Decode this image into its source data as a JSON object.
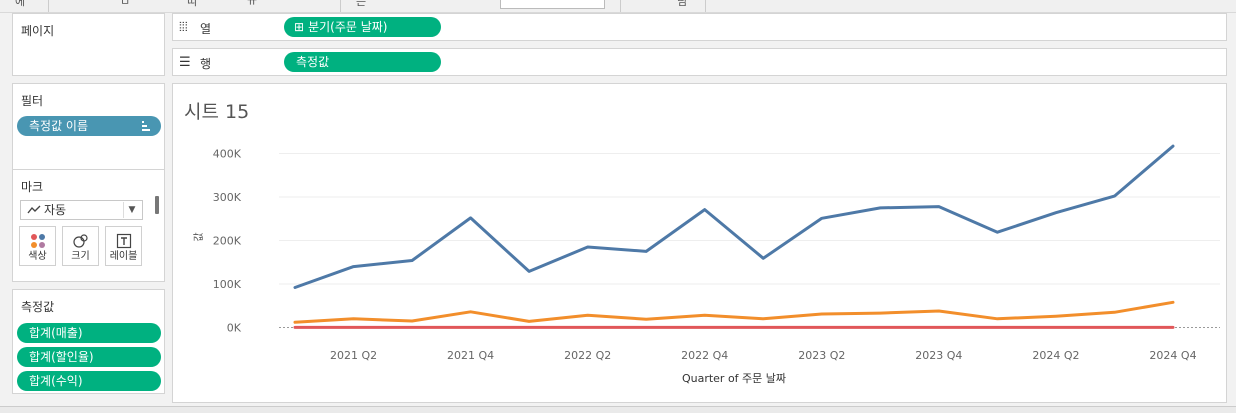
{
  "toolbar": {
    "fragments": [
      "에",
      "ㅁ",
      "띠",
      "ㅠ",
      "는",
      "님"
    ]
  },
  "pages_card": {
    "title": "페이지"
  },
  "filters_card": {
    "title": "필터",
    "pill": "측정값 이름",
    "pill_icon": "sort-icon"
  },
  "marks_card": {
    "title": "마크",
    "mark_type": "자동",
    "mark_type_icon": "line-chart-icon",
    "buttons": [
      {
        "label": "색상",
        "icon": "color-dots-icon"
      },
      {
        "label": "크기",
        "icon": "size-circles-icon"
      },
      {
        "label": "레이블",
        "icon": "text-label-icon"
      }
    ]
  },
  "measures_card": {
    "title": "측정값",
    "pills": [
      "합계(매출)",
      "합계(할인율)",
      "합계(수익)"
    ]
  },
  "columns_shelf": {
    "label": "열",
    "icon": "columns-icon",
    "pill": "분기(주문 날짜)",
    "pill_prefix": "⊞"
  },
  "rows_shelf": {
    "label": "행",
    "icon": "rows-icon",
    "pill": "측정값"
  },
  "sheet": {
    "title": "시트 15"
  },
  "colors": {
    "accent_green": "#00b180",
    "filter_blue": "#4996b2",
    "sales": "#4e79a7",
    "profit": "#f28e2b",
    "discount": "#e15759"
  },
  "chart_data": {
    "type": "line",
    "title": "시트 15",
    "xlabel": "Quarter of 주문 날짜",
    "ylabel": "값",
    "x": [
      "2021 Q1",
      "2021 Q2",
      "2021 Q3",
      "2021 Q4",
      "2022 Q1",
      "2022 Q2",
      "2022 Q3",
      "2022 Q4",
      "2023 Q1",
      "2023 Q2",
      "2023 Q3",
      "2023 Q4",
      "2024 Q1",
      "2024 Q2",
      "2024 Q3",
      "2024 Q4"
    ],
    "x_tick_labels": [
      "2021 Q2",
      "2021 Q4",
      "2022 Q2",
      "2022 Q4",
      "2023 Q2",
      "2023 Q4",
      "2024 Q2",
      "2024 Q4"
    ],
    "y_ticks": [
      0,
      100000,
      200000,
      300000,
      400000
    ],
    "y_tick_labels": [
      "0K",
      "100K",
      "200K",
      "300K",
      "400K"
    ],
    "ylim": [
      -20000,
      440000
    ],
    "grid": true,
    "series": [
      {
        "values": [
          92000,
          140000,
          154000,
          252000,
          129000,
          185000,
          175000,
          271000,
          159000,
          251000,
          275000,
          278000,
          219000,
          264000,
          302000,
          417000
        ],
        "color": "#4e79a7"
      },
      {
        "values": [
          12000,
          20000,
          15000,
          36000,
          14000,
          28000,
          19000,
          28000,
          20000,
          31000,
          33000,
          38000,
          20000,
          26000,
          35000,
          58000
        ],
        "color": "#f28e2b"
      },
      {
        "values": [
          300,
          300,
          300,
          300,
          300,
          300,
          300,
          300,
          300,
          300,
          300,
          300,
          300,
          300,
          300,
          300
        ],
        "color": "#e15759"
      }
    ]
  }
}
